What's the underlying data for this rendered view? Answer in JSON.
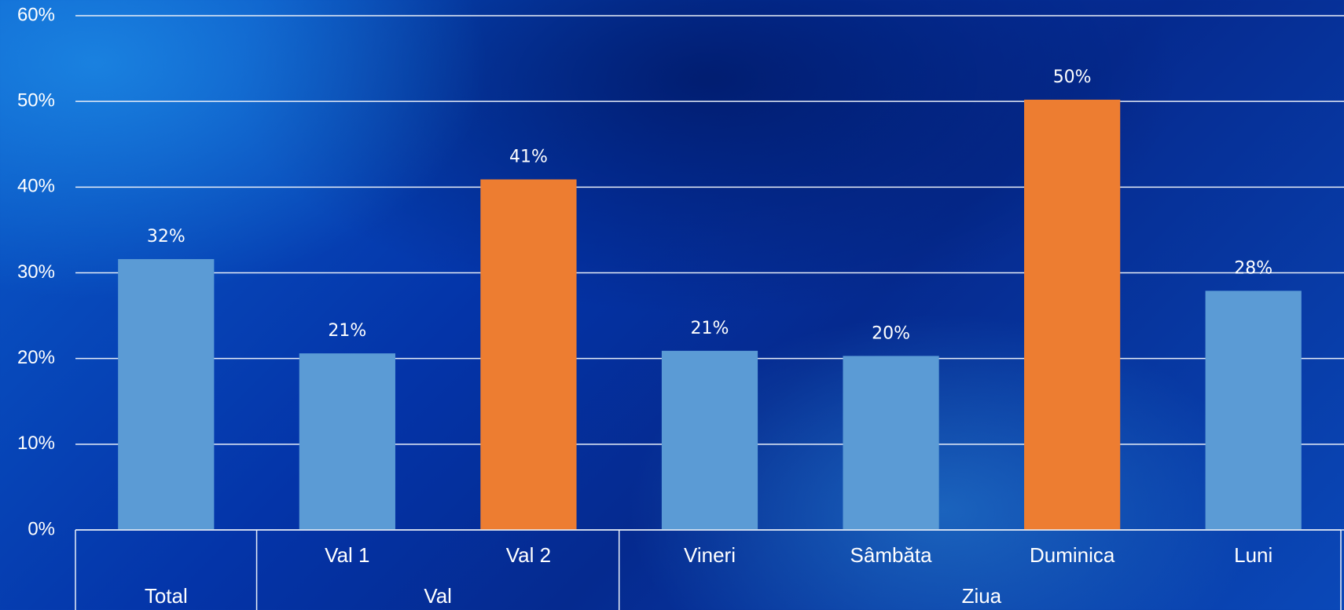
{
  "chart_data": {
    "type": "bar",
    "categories": [
      null,
      "Val 1",
      "Val 2",
      "Vineri",
      "Sâmbăta",
      "Duminica",
      "Luni"
    ],
    "groups": [
      {
        "name": "Total",
        "count": 1
      },
      {
        "name": "Val",
        "count": 2
      },
      {
        "name": "Ziua",
        "count": 4
      }
    ],
    "values": [
      31.6,
      20.6,
      40.9,
      20.9,
      20.3,
      50.2,
      27.9
    ],
    "value_labels": [
      "32%",
      "21%",
      "41%",
      "21%",
      "20%",
      "50%",
      "28%"
    ],
    "colors": [
      "#5b9bd5",
      "#5b9bd5",
      "#ed7d31",
      "#5b9bd5",
      "#5b9bd5",
      "#ed7d31",
      "#5b9bd5"
    ],
    "ylim": [
      0,
      60
    ],
    "yticks": [
      {
        "value": 0,
        "label": "0%"
      },
      {
        "value": 10,
        "label": "10%"
      },
      {
        "value": 20,
        "label": "20%"
      },
      {
        "value": 30,
        "label": "30%"
      },
      {
        "value": 40,
        "label": "40%"
      },
      {
        "value": 50,
        "label": "50%"
      },
      {
        "value": 60,
        "label": "60%"
      }
    ],
    "grid": true
  }
}
